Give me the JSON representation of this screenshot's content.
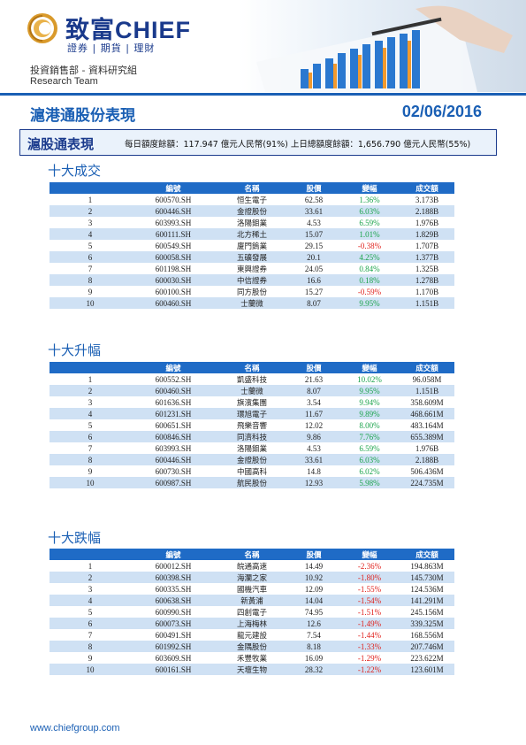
{
  "header": {
    "brand": "致富CHIEF",
    "brand_sub": "證券 | 期貨 | 理財",
    "department": "投資銷售部 - 資料研究組",
    "team": "Research Team"
  },
  "report": {
    "title": "滬港通股份表現",
    "date": "02/06/2016"
  },
  "quota": {
    "label": "滬股通表現",
    "text": "每日額度餘額：117.947 億元人民幣(91%)    上日總額度餘額：1,656.790 億元人民幣(55%)"
  },
  "columns": [
    "",
    "編號",
    "名稱",
    "股價",
    "變幅",
    "成交額"
  ],
  "sections": [
    {
      "title": "十大成交",
      "rows": [
        {
          "rank": "1",
          "code": "600570.SH",
          "name": "恒生電子",
          "price": "62.58",
          "change": "1.36%",
          "turnover": "3.173B"
        },
        {
          "rank": "2",
          "code": "600446.SH",
          "name": "金證股份",
          "price": "33.61",
          "change": "6.03%",
          "turnover": "2.188B"
        },
        {
          "rank": "3",
          "code": "603993.SH",
          "name": "洛陽鉬業",
          "price": "4.53",
          "change": "6.59%",
          "turnover": "1.976B"
        },
        {
          "rank": "4",
          "code": "600111.SH",
          "name": "北方稀土",
          "price": "15.07",
          "change": "1.01%",
          "turnover": "1.829B"
        },
        {
          "rank": "5",
          "code": "600549.SH",
          "name": "廈門鎢業",
          "price": "29.15",
          "change": "-0.38%",
          "turnover": "1.707B"
        },
        {
          "rank": "6",
          "code": "600058.SH",
          "name": "五礦發展",
          "price": "20.1",
          "change": "4.25%",
          "turnover": "1.377B"
        },
        {
          "rank": "7",
          "code": "601198.SH",
          "name": "東興證券",
          "price": "24.05",
          "change": "0.84%",
          "turnover": "1.325B"
        },
        {
          "rank": "8",
          "code": "600030.SH",
          "name": "中信證券",
          "price": "16.6",
          "change": "0.18%",
          "turnover": "1.278B"
        },
        {
          "rank": "9",
          "code": "600100.SH",
          "name": "同方股份",
          "price": "15.27",
          "change": "-0.59%",
          "turnover": "1.170B"
        },
        {
          "rank": "10",
          "code": "600460.SH",
          "name": "士蘭微",
          "price": "8.07",
          "change": "9.95%",
          "turnover": "1.151B"
        }
      ]
    },
    {
      "title": "十大升幅",
      "rows": [
        {
          "rank": "1",
          "code": "600552.SH",
          "name": "凱盛科技",
          "price": "21.63",
          "change": "10.02%",
          "turnover": "96.058M"
        },
        {
          "rank": "2",
          "code": "600460.SH",
          "name": "士蘭微",
          "price": "8.07",
          "change": "9.95%",
          "turnover": "1.151B"
        },
        {
          "rank": "3",
          "code": "601636.SH",
          "name": "旗濱集團",
          "price": "3.54",
          "change": "9.94%",
          "turnover": "358.609M"
        },
        {
          "rank": "4",
          "code": "601231.SH",
          "name": "環旭電子",
          "price": "11.67",
          "change": "9.89%",
          "turnover": "468.661M"
        },
        {
          "rank": "5",
          "code": "600651.SH",
          "name": "飛樂音響",
          "price": "12.02",
          "change": "8.00%",
          "turnover": "483.164M"
        },
        {
          "rank": "6",
          "code": "600846.SH",
          "name": "同濟科技",
          "price": "9.86",
          "change": "7.76%",
          "turnover": "655.389M"
        },
        {
          "rank": "7",
          "code": "603993.SH",
          "name": "洛陽鉬業",
          "price": "4.53",
          "change": "6.59%",
          "turnover": "1.976B"
        },
        {
          "rank": "8",
          "code": "600446.SH",
          "name": "金證股份",
          "price": "33.61",
          "change": "6.03%",
          "turnover": "2.188B"
        },
        {
          "rank": "9",
          "code": "600730.SH",
          "name": "中國高科",
          "price": "14.8",
          "change": "6.02%",
          "turnover": "506.436M"
        },
        {
          "rank": "10",
          "code": "600987.SH",
          "name": "航民股份",
          "price": "12.93",
          "change": "5.98%",
          "turnover": "224.735M"
        }
      ]
    },
    {
      "title": "十大跌幅",
      "rows": [
        {
          "rank": "1",
          "code": "600012.SH",
          "name": "皖通高速",
          "price": "14.49",
          "change": "-2.36%",
          "turnover": "194.863M"
        },
        {
          "rank": "2",
          "code": "600398.SH",
          "name": "海瀾之家",
          "price": "10.92",
          "change": "-1.80%",
          "turnover": "145.730M"
        },
        {
          "rank": "3",
          "code": "600335.SH",
          "name": "國機汽車",
          "price": "12.09",
          "change": "-1.55%",
          "turnover": "124.536M"
        },
        {
          "rank": "4",
          "code": "600638.SH",
          "name": "新黃浦",
          "price": "14.04",
          "change": "-1.54%",
          "turnover": "141.291M"
        },
        {
          "rank": "5",
          "code": "600990.SH",
          "name": "四創電子",
          "price": "74.95",
          "change": "-1.51%",
          "turnover": "245.156M"
        },
        {
          "rank": "6",
          "code": "600073.SH",
          "name": "上海梅林",
          "price": "12.6",
          "change": "-1.49%",
          "turnover": "339.325M"
        },
        {
          "rank": "7",
          "code": "600491.SH",
          "name": "龍元建設",
          "price": "7.54",
          "change": "-1.44%",
          "turnover": "168.556M"
        },
        {
          "rank": "8",
          "code": "601992.SH",
          "name": "金隅股份",
          "price": "8.18",
          "change": "-1.33%",
          "turnover": "207.746M"
        },
        {
          "rank": "9",
          "code": "603609.SH",
          "name": "禾豐牧業",
          "price": "16.09",
          "change": "-1.29%",
          "turnover": "223.622M"
        },
        {
          "rank": "10",
          "code": "600161.SH",
          "name": "天壇生物",
          "price": "28.32",
          "change": "-1.22%",
          "turnover": "123.601M"
        }
      ]
    }
  ],
  "colors": {
    "brand_blue": "#1a3a8c",
    "accent_blue": "#1a5fb4",
    "header_row": "#1f6bc6",
    "stripe": "#cfe1f4",
    "positive": "#1aa34a",
    "negative": "#e0201b"
  },
  "footer": {
    "url": "www.chiefgroup.com"
  }
}
